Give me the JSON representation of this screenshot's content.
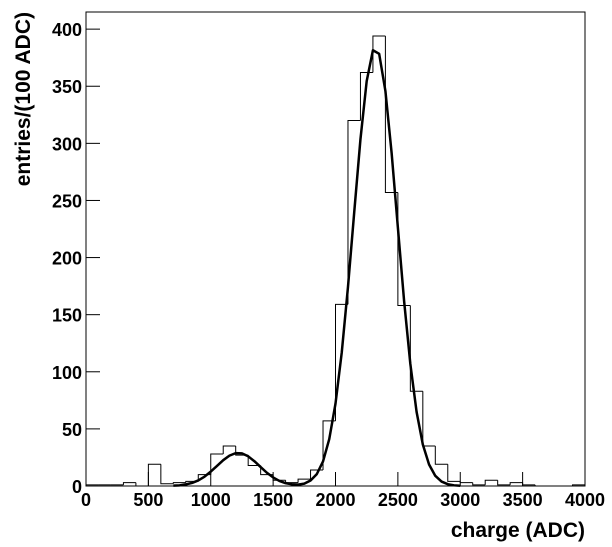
{
  "chart_data": {
    "type": "histogram",
    "xlabel": "charge (ADC)",
    "ylabel": "entries/(100 ADC)",
    "bins": [
      0,
      100,
      200,
      300,
      400,
      500,
      600,
      700,
      800,
      900,
      1000,
      1100,
      1200,
      1300,
      1400,
      1500,
      1600,
      1700,
      1800,
      1900,
      2000,
      2100,
      2200,
      2300,
      2400,
      2500,
      2600,
      2700,
      2800,
      2900,
      3000,
      3100,
      3200,
      3300,
      3400,
      3500,
      3600,
      3700,
      3800,
      3900,
      4000
    ],
    "values": [
      1,
      1,
      1,
      3,
      0,
      19,
      2,
      3,
      4,
      10,
      28,
      35,
      27,
      18,
      10,
      5,
      3,
      6,
      14,
      57,
      159,
      320,
      362,
      394,
      257,
      158,
      83,
      35,
      19,
      4,
      3,
      1,
      5,
      1,
      3,
      1,
      0,
      0,
      0,
      1
    ],
    "color": "#000000",
    "fit": {
      "color": "#000000",
      "x": [
        700,
        750,
        800,
        850,
        900,
        950,
        1000,
        1050,
        1100,
        1150,
        1200,
        1250,
        1300,
        1350,
        1400,
        1450,
        1500,
        1550,
        1600,
        1650,
        1700,
        1750,
        1800,
        1850,
        1900,
        1950,
        2000,
        2050,
        2100,
        2150,
        2200,
        2250,
        2300,
        2350,
        2400,
        2450,
        2500,
        2550,
        2600,
        2650,
        2700,
        2750,
        2800,
        2850,
        2900,
        2950,
        3000
      ],
      "values": [
        0.3,
        0.6,
        1.4,
        2.7,
        4.9,
        8.2,
        12.6,
        17.6,
        22.6,
        26.6,
        28.8,
        28.6,
        26,
        21.7,
        16.6,
        11.6,
        7.5,
        4.4,
        2.5,
        1.5,
        1.2,
        2.1,
        4.8,
        10.4,
        21.5,
        41.1,
        72.1,
        116.8,
        174.2,
        239.6,
        303.6,
        354.5,
        381.5,
        378.4,
        345.9,
        291.4,
        226.3,
        161.9,
        106.8,
        64.9,
        36.3,
        18.8,
        8.9,
        3.9,
        1.6,
        0.6,
        0.2
      ]
    },
    "xlim": [
      0,
      4000
    ],
    "ylim": [
      0,
      415
    ],
    "xticks": [
      0,
      500,
      1000,
      1500,
      2000,
      2500,
      3000,
      3500,
      4000
    ],
    "yticks": [
      0,
      50,
      100,
      150,
      200,
      250,
      300,
      350,
      400
    ]
  }
}
